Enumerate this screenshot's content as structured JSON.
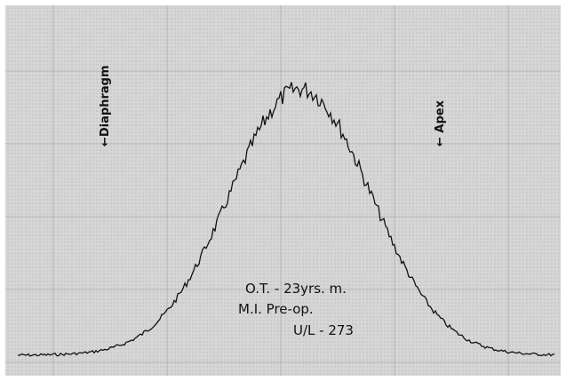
{
  "labels": {
    "left_marker": "←Diaphragm",
    "right_marker": "← Apex"
  },
  "annotation": {
    "line1": "O.T. - 23yrs. m.",
    "line2": "M.I.  Pre-op.",
    "line3": "U/L - 273"
  }
}
